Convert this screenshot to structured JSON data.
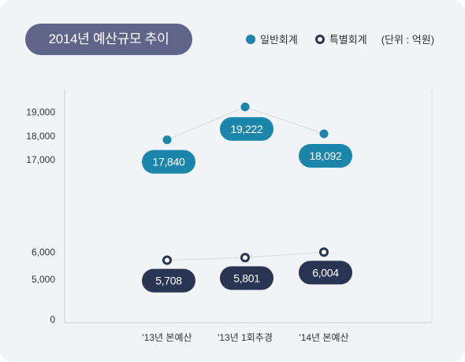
{
  "title": "2014년 예산규모 추이",
  "legend": {
    "general_label": "일반회계",
    "special_label": "특별회계",
    "unit": "(단위 : 억원)"
  },
  "colors": {
    "general": "#1b86aa",
    "special": "#2a3553",
    "title_bg": "#5e6589"
  },
  "chart_data": {
    "type": "line",
    "categories": [
      "'13년 본예산",
      "'13년 1회추경",
      "'14년 본예산"
    ],
    "y_ticks": [
      "0",
      "5,000",
      "6,000",
      "17,000",
      "18,000",
      "19,000"
    ],
    "axis_break": "between 6,000 and 17,000",
    "series": [
      {
        "name": "일반회계",
        "values": [
          17840,
          19222,
          18092
        ],
        "labels": [
          "17,840",
          "19,222",
          "18,092"
        ]
      },
      {
        "name": "특별회계",
        "values": [
          5708,
          5801,
          6004
        ],
        "labels": [
          "5,708",
          "5,801",
          "6,004"
        ]
      }
    ]
  }
}
